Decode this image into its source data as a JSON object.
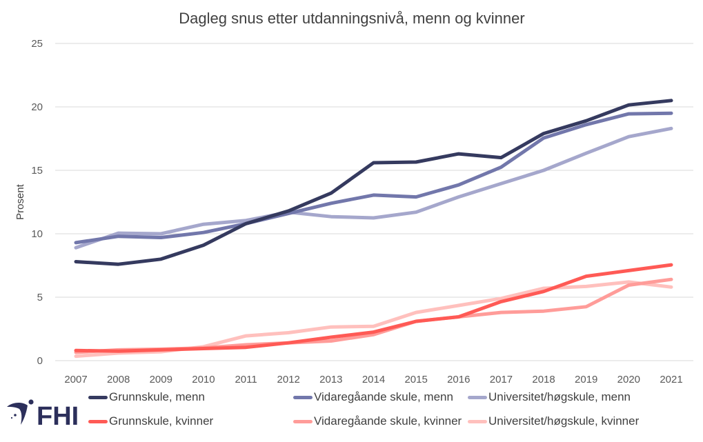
{
  "brand": {
    "logo_text": "FHI",
    "logo_color": "#2c2f5b",
    "logo_accent": "#ff5a4e"
  },
  "chart_data": {
    "type": "line",
    "title": "Dagleg snus etter utdanningsnivå, menn og kvinner",
    "xlabel": "",
    "ylabel": "Prosent",
    "ylim": [
      0,
      25
    ],
    "yticks": [
      "0",
      "5",
      "10",
      "15",
      "20",
      "25"
    ],
    "ytick_values": [
      0,
      5,
      10,
      15,
      20,
      25
    ],
    "grid": true,
    "legend_position": "bottom",
    "categories": [
      "2007",
      "2008",
      "2009",
      "2010",
      "2011",
      "2012",
      "2013",
      "2014",
      "2015",
      "2016",
      "2017",
      "2018",
      "2019",
      "2020",
      "2021"
    ],
    "series": [
      {
        "name": "Grunnskule, menn",
        "color": "#353a5f",
        "values": [
          7.8,
          7.6,
          8.0,
          9.1,
          10.8,
          11.8,
          13.2,
          15.6,
          15.65,
          16.3,
          16.0,
          17.9,
          18.9,
          20.15,
          20.5
        ]
      },
      {
        "name": "Vidaregåande skule, menn",
        "color": "#7277ab",
        "values": [
          9.3,
          9.8,
          9.7,
          10.1,
          10.8,
          11.6,
          12.4,
          13.05,
          12.9,
          13.85,
          15.25,
          17.55,
          18.6,
          19.45,
          19.5
        ]
      },
      {
        "name": "Universitet/høgskule, menn",
        "color": "#a5a7cc",
        "values": [
          8.9,
          10.05,
          10.0,
          10.75,
          11.05,
          11.7,
          11.35,
          11.25,
          11.7,
          12.9,
          13.95,
          15.0,
          16.35,
          17.65,
          18.3
        ]
      },
      {
        "name": "Grunnskule, kvinner",
        "color": "#ff5a55",
        "values": [
          0.8,
          0.75,
          0.85,
          0.95,
          1.05,
          1.4,
          1.85,
          2.25,
          3.1,
          3.45,
          4.65,
          5.45,
          6.65,
          7.1,
          7.55
        ]
      },
      {
        "name": "Vidaregåande skule, kvinner",
        "color": "#ff9c99",
        "values": [
          0.65,
          0.85,
          0.9,
          1.0,
          1.25,
          1.4,
          1.55,
          2.05,
          3.1,
          3.45,
          3.8,
          3.9,
          4.25,
          5.95,
          6.4
        ]
      },
      {
        "name": "Universitet/høgskule, kvinner",
        "color": "#ffc0bd",
        "values": [
          0.35,
          0.6,
          0.7,
          1.1,
          1.95,
          2.2,
          2.65,
          2.7,
          3.8,
          4.35,
          4.9,
          5.7,
          5.85,
          6.2,
          5.8
        ]
      }
    ]
  }
}
